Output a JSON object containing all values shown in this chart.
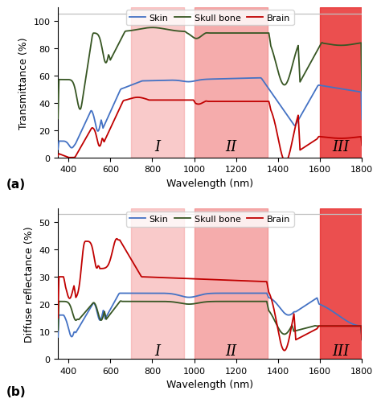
{
  "xlim": [
    350,
    1800
  ],
  "xticks": [
    400,
    600,
    800,
    1000,
    1200,
    1400,
    1600,
    1800
  ],
  "window_I": [
    700,
    950
  ],
  "window_II": [
    1000,
    1350
  ],
  "window_III": [
    1600,
    1800
  ],
  "win_I_color": "#f5a0a0",
  "win_II_color": "#f08080",
  "win_III_color": "#e83030",
  "win_I_alpha": 0.55,
  "win_II_alpha": 0.65,
  "win_III_alpha": 0.85,
  "trans_ylim": [
    0,
    110
  ],
  "trans_yticks": [
    0,
    20,
    40,
    60,
    80,
    100
  ],
  "trans_ylabel": "Transmittance (%)",
  "trans_hline": 105,
  "diff_ylim": [
    0,
    55
  ],
  "diff_yticks": [
    0,
    10,
    20,
    30,
    40,
    50
  ],
  "diff_ylabel": "Diffuse reflectance (%)",
  "diff_hline": 53,
  "xlabel": "Wavelength (nm)",
  "skin_color": "#4472c4",
  "skull_color": "#375623",
  "brain_color": "#c00000",
  "label_a": "(a)",
  "label_b": "(b)",
  "roman_I": "I",
  "roman_II": "II",
  "roman_III": "III"
}
